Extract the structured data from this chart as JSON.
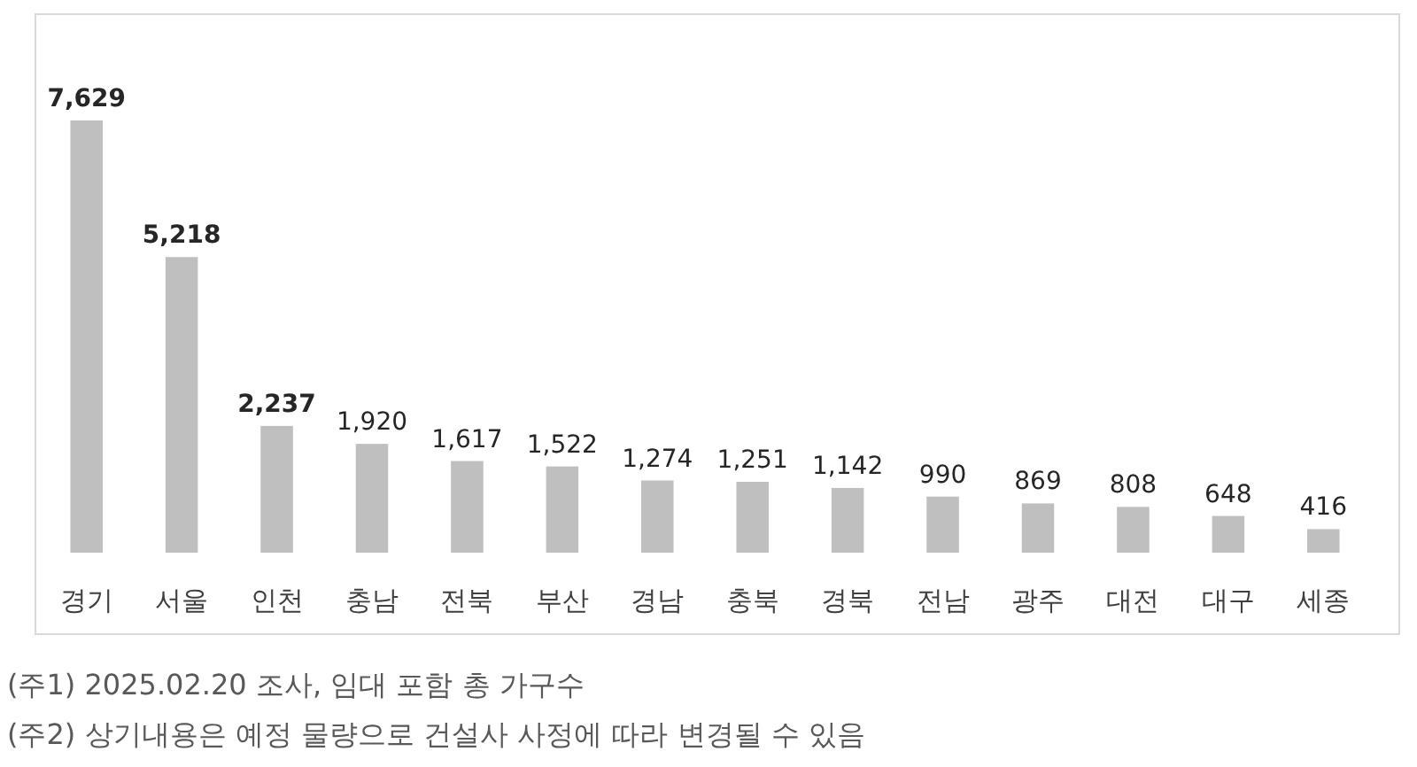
{
  "chart_data": {
    "type": "bar",
    "categories": [
      "경기",
      "서울",
      "인천",
      "충남",
      "전북",
      "부산",
      "경남",
      "충북",
      "경북",
      "전남",
      "광주",
      "대전",
      "대구",
      "세종"
    ],
    "values": [
      7629,
      5218,
      2237,
      1920,
      1617,
      1522,
      1274,
      1251,
      1142,
      990,
      869,
      808,
      648,
      416
    ],
    "color": "#bfbfbf",
    "value_labels": [
      "7,629",
      "5,218",
      "2,237",
      "1,920",
      "1,617",
      "1,522",
      "1,274",
      "1,251",
      "1,142",
      "990",
      "869",
      "808",
      "648",
      "416"
    ],
    "annotations": [
      "(주1) 2025.02.20 조사, 임대 포함 총 가구수",
      "(주2) 상기내용은 예정 물량으로 건설사 사정에 따라 변경될 수 있음"
    ]
  }
}
